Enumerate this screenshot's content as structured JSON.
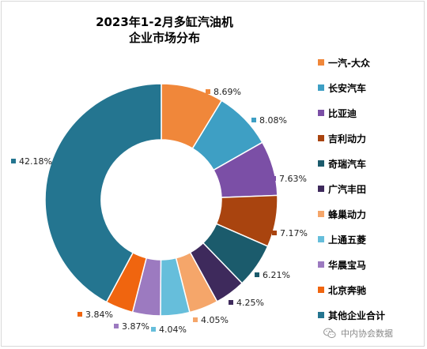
{
  "chart_data": {
    "type": "pie",
    "title_lines": [
      "2023年1-2月多缸汽油机",
      "企业市场分布"
    ],
    "categories": [
      "一汽-大众",
      "长安汽车",
      "比亚迪",
      "吉利动力",
      "奇瑞汽车",
      "广汽丰田",
      "蜂巢动力",
      "上通五菱",
      "华晨宝马",
      "北京奔驰",
      "其他企业合计"
    ],
    "values": [
      8.69,
      8.08,
      7.63,
      7.17,
      6.21,
      4.25,
      4.05,
      4.04,
      3.87,
      3.84,
      42.18
    ],
    "labels": [
      "8.69%",
      "8.08%",
      "7.63%",
      "7.17%",
      "6.21%",
      "4.25%",
      "4.05%",
      "4.04%",
      "3.87%",
      "3.84%",
      "42.18%"
    ],
    "colors": [
      "#F0873A",
      "#3E9FC4",
      "#7B4FA6",
      "#A9440F",
      "#1B5B6C",
      "#3E2A5C",
      "#F5A66A",
      "#66BEDB",
      "#9C7AC0",
      "#F0650F",
      "#247590"
    ],
    "legend_position": "right",
    "donut": true
  },
  "watermark": {
    "text": "中内协会数据",
    "icon": "wechat-icon"
  }
}
